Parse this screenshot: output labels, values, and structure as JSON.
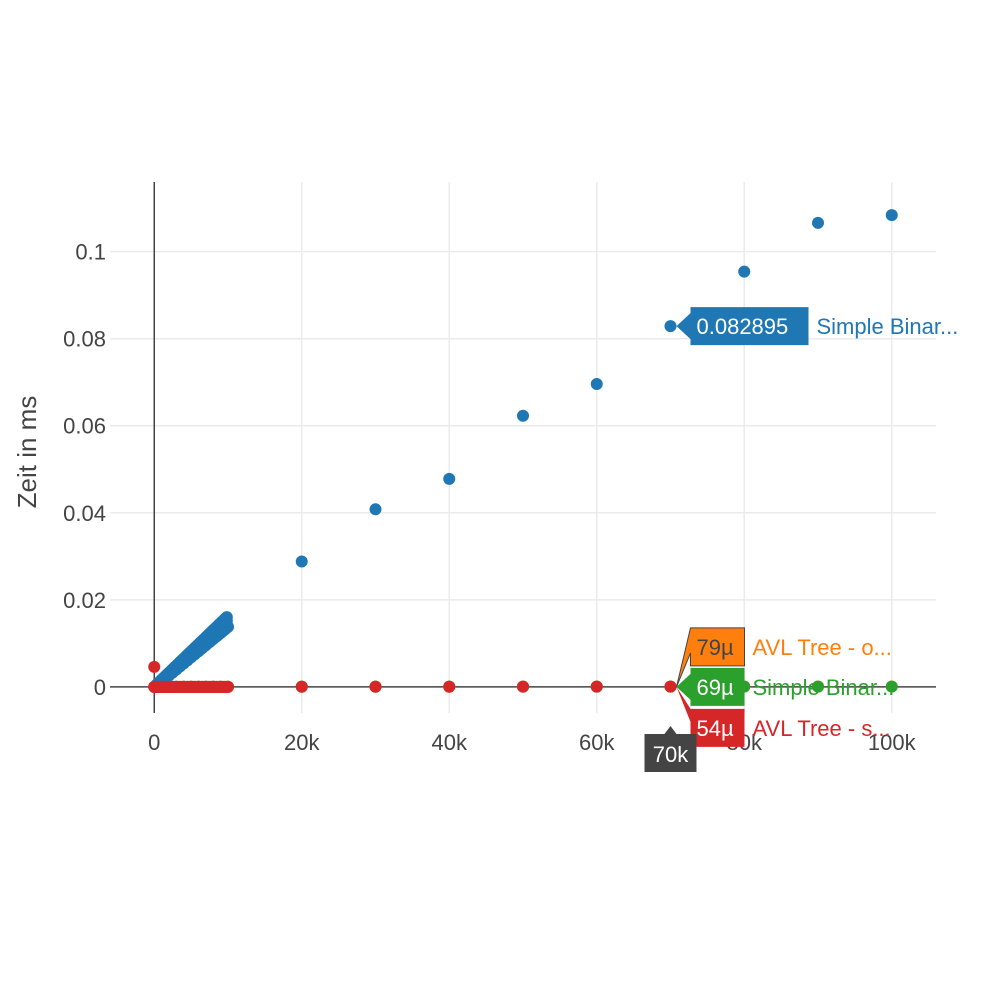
{
  "chart_data": {
    "type": "scatter",
    "title": "",
    "xlabel": "",
    "ylabel": "Zeit in ms",
    "xlim": [
      -6000,
      106000
    ],
    "ylim": [
      -0.006,
      0.116
    ],
    "x_ticks": [
      {
        "value": 0,
        "label": "0"
      },
      {
        "value": 20000,
        "label": "20k"
      },
      {
        "value": 40000,
        "label": "40k"
      },
      {
        "value": 60000,
        "label": "60k"
      },
      {
        "value": 80000,
        "label": "80k"
      },
      {
        "value": 100000,
        "label": "100k"
      }
    ],
    "y_ticks": [
      {
        "value": 0,
        "label": "0"
      },
      {
        "value": 0.02,
        "label": "0.02"
      },
      {
        "value": 0.04,
        "label": "0.04"
      },
      {
        "value": 0.06,
        "label": "0.06"
      },
      {
        "value": 0.08,
        "label": "0.08"
      },
      {
        "value": 0.1,
        "label": "0.1"
      }
    ],
    "grid": true,
    "legend": false,
    "series": [
      {
        "name": "Simple Binar...",
        "color": "#1f77b4",
        "x": [
          0,
          200,
          400,
          600,
          800,
          1000,
          1500,
          2000,
          2500,
          3000,
          3500,
          4000,
          4500,
          5000,
          5500,
          6000,
          6500,
          7000,
          7500,
          8000,
          8500,
          9000,
          9500,
          10000,
          20000,
          30000,
          40000,
          50000,
          60000,
          70000,
          80000,
          90000,
          100000
        ],
        "y": [
          0.0,
          0.0002,
          0.0005,
          0.0008,
          0.001,
          0.0013,
          0.0019,
          0.0026,
          0.0033,
          0.004,
          0.0047,
          0.0054,
          0.0061,
          0.0068,
          0.0075,
          0.0082,
          0.0089,
          0.0096,
          0.0103,
          0.011,
          0.0117,
          0.0124,
          0.0131,
          0.0138,
          0.0288,
          0.0408,
          0.0478,
          0.0623,
          0.0696,
          0.082895,
          0.0954,
          0.1066,
          0.1084
        ]
      },
      {
        "name": "AVL Tree - o...",
        "color": "#ff7f0e",
        "x": [
          0,
          1000,
          2000,
          3000,
          4000,
          5000,
          6000,
          7000,
          8000,
          9000,
          10000,
          20000,
          30000,
          40000,
          50000,
          60000,
          70000,
          80000,
          90000,
          100000
        ],
        "y": [
          0.0,
          1e-05,
          2e-05,
          2e-05,
          3e-05,
          3e-05,
          3e-05,
          4e-05,
          4e-05,
          4e-05,
          4e-05,
          5e-05,
          6e-05,
          6e-05,
          7e-05,
          7e-05,
          7.9e-05,
          8e-05,
          8e-05,
          8e-05
        ]
      },
      {
        "name": "Simple Binar...",
        "color": "#2ca02c",
        "x": [
          0,
          1000,
          2000,
          3000,
          4000,
          5000,
          6000,
          7000,
          8000,
          9000,
          10000,
          20000,
          30000,
          40000,
          50000,
          60000,
          70000,
          80000,
          90000,
          100000
        ],
        "y": [
          0.0,
          1e-05,
          2e-05,
          2e-05,
          3e-05,
          3e-05,
          3e-05,
          3e-05,
          4e-05,
          4e-05,
          4e-05,
          5e-05,
          5e-05,
          6e-05,
          6e-05,
          6e-05,
          6.9e-05,
          7e-05,
          7e-05,
          7e-05
        ]
      },
      {
        "name": "AVL Tree - s...",
        "color": "#d62728",
        "x": [
          0,
          0,
          200,
          400,
          600,
          800,
          1000,
          1500,
          2000,
          2500,
          3000,
          3500,
          4000,
          4500,
          5000,
          5500,
          6000,
          6500,
          7000,
          7500,
          8000,
          8500,
          9000,
          9500,
          10000,
          20000,
          30000,
          40000,
          50000,
          60000,
          70000
        ],
        "y": [
          0.0046,
          0.0,
          0.0,
          0.0,
          0.0,
          0.0,
          0.0,
          0.0,
          0.0,
          0.0,
          0.0,
          0.0,
          0.0,
          0.0,
          0.0,
          0.0,
          0.0,
          0.0,
          0.0,
          0.0,
          0.0,
          0.0,
          0.0,
          0.0,
          0.0,
          3e-05,
          4e-05,
          4e-05,
          5e-05,
          5e-05,
          5.4e-05
        ]
      }
    ],
    "hover": {
      "x_label": "70k",
      "x_label_color": "#444444",
      "items": [
        {
          "value_label": "0.082895",
          "series_label": "Simple Binar...",
          "color": "#1f77b4",
          "y": 0.082895
        },
        {
          "value_label": "79µ",
          "series_label": "AVL Tree - o...",
          "color": "#ff7f0e",
          "y": 7.9e-05
        },
        {
          "value_label": "69µ",
          "series_label": "Simple Binar...",
          "color": "#2ca02c",
          "y": 6.9e-05
        },
        {
          "value_label": "54µ",
          "series_label": "AVL Tree - s...",
          "color": "#d62728",
          "y": 5.4e-05
        }
      ]
    }
  }
}
